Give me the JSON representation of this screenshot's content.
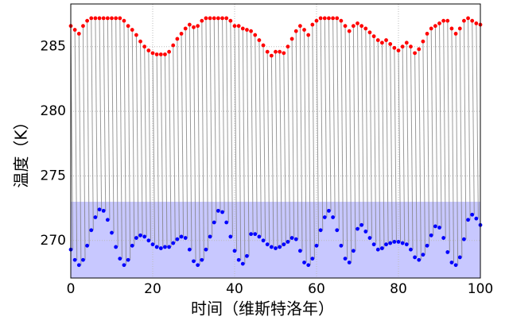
{
  "chart_data": {
    "type": "scatter",
    "xlabel": "时间（维斯特洛年）",
    "ylabel": "温度（K）",
    "x": [
      0,
      1,
      2,
      3,
      4,
      5,
      6,
      7,
      8,
      9,
      10,
      11,
      12,
      13,
      14,
      15,
      16,
      17,
      18,
      19,
      20,
      21,
      22,
      23,
      24,
      25,
      26,
      27,
      28,
      29,
      30,
      31,
      32,
      33,
      34,
      35,
      36,
      37,
      38,
      39,
      40,
      41,
      42,
      43,
      44,
      45,
      46,
      47,
      48,
      49,
      50,
      51,
      52,
      53,
      54,
      55,
      56,
      57,
      58,
      59,
      60,
      61,
      62,
      63,
      64,
      65,
      66,
      67,
      68,
      69,
      70,
      71,
      72,
      73,
      74,
      75,
      76,
      77,
      78,
      79,
      80,
      81,
      82,
      83,
      84,
      85,
      86,
      87,
      88,
      89,
      90,
      91,
      92,
      93,
      94,
      95,
      96,
      97,
      98,
      99,
      100
    ],
    "series": [
      {
        "color": "#ff0000",
        "values": [
          286.6,
          286.3,
          286.0,
          286.6,
          287.0,
          287.2,
          287.2,
          287.2,
          287.2,
          287.2,
          287.2,
          287.2,
          287.2,
          287.0,
          286.6,
          286.3,
          285.9,
          285.4,
          285.0,
          284.7,
          284.5,
          284.4,
          284.4,
          284.4,
          284.6,
          285.1,
          285.6,
          286.0,
          286.4,
          286.7,
          286.5,
          286.6,
          287.0,
          287.2,
          287.2,
          287.2,
          287.2,
          287.2,
          287.2,
          287.0,
          286.6,
          286.6,
          286.4,
          286.3,
          286.2,
          285.9,
          285.5,
          285.1,
          284.6,
          284.3,
          284.6,
          284.6,
          284.5,
          285.0,
          285.6,
          286.2,
          286.6,
          286.3,
          285.9,
          286.7,
          287.0,
          287.2,
          287.2,
          287.2,
          287.2,
          287.2,
          287.0,
          286.6,
          286.2,
          286.6,
          286.8,
          286.6,
          286.4,
          286.1,
          285.8,
          285.5,
          285.3,
          285.5,
          285.2,
          284.9,
          284.7,
          285.0,
          285.3,
          285.0,
          284.5,
          284.8,
          285.4,
          286.0,
          286.4,
          286.6,
          286.8,
          287.0,
          287.0,
          286.4,
          286.0,
          286.4,
          287.0,
          287.2,
          287.0,
          286.8,
          286.7
        ]
      },
      {
        "color": "#0000ff",
        "values": [
          269.3,
          268.5,
          268.1,
          268.5,
          269.6,
          270.8,
          271.8,
          272.4,
          272.3,
          271.6,
          270.6,
          269.5,
          268.6,
          268.1,
          268.5,
          269.6,
          270.2,
          270.4,
          270.3,
          270.0,
          269.7,
          269.5,
          269.4,
          269.5,
          269.5,
          269.8,
          270.1,
          270.3,
          270.2,
          269.3,
          268.4,
          268.1,
          268.5,
          269.3,
          270.3,
          271.4,
          272.3,
          272.2,
          271.4,
          270.3,
          269.2,
          268.5,
          268.2,
          268.8,
          270.5,
          270.5,
          270.3,
          270.0,
          269.7,
          269.5,
          269.4,
          269.5,
          269.7,
          269.9,
          270.2,
          270.1,
          269.2,
          268.3,
          268.1,
          268.6,
          269.6,
          270.8,
          271.8,
          272.3,
          271.8,
          270.8,
          269.6,
          268.6,
          268.3,
          269.2,
          270.9,
          271.2,
          270.7,
          270.2,
          269.7,
          269.3,
          269.4,
          269.7,
          269.8,
          269.9,
          269.9,
          269.8,
          269.7,
          269.3,
          268.7,
          268.5,
          268.9,
          269.6,
          270.4,
          271.1,
          271.0,
          270.2,
          269.1,
          268.3,
          268.1,
          268.7,
          270.1,
          271.6,
          272.0,
          271.7,
          271.2
        ]
      }
    ],
    "xlim": [
      0,
      100
    ],
    "xticks": [
      0,
      20,
      40,
      60,
      80,
      100
    ],
    "ylim": [
      267.1,
      288.3
    ],
    "yticks": [
      270,
      275,
      280,
      285
    ],
    "shade_below": 273,
    "shade_color": "#c8c8ff",
    "stem_color": "#808080",
    "grid": true
  }
}
